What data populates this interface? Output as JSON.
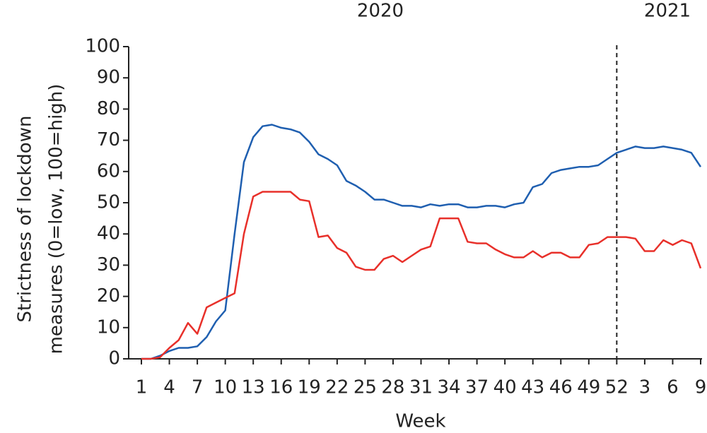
{
  "chart_data": {
    "type": "line",
    "annotations": [
      "2020",
      "2021"
    ],
    "xlabel": "Week",
    "ylabel": [
      "Strictness of lockdown",
      "measures (0=low, 100=high)"
    ],
    "categories": [
      "1",
      null,
      null,
      "4",
      null,
      null,
      "7",
      null,
      null,
      "10",
      null,
      null,
      "13",
      null,
      null,
      "16",
      null,
      null,
      "19",
      null,
      null,
      "22",
      null,
      null,
      "25",
      null,
      null,
      "28",
      null,
      null,
      "31",
      null,
      null,
      "34",
      null,
      null,
      "37",
      null,
      null,
      "40",
      null,
      null,
      "43",
      null,
      null,
      "46",
      null,
      null,
      "49",
      null,
      null,
      "52",
      null,
      null,
      "3",
      null,
      null,
      "6",
      null,
      null,
      "9"
    ],
    "series": [
      {
        "color": "#1f5fb0",
        "values": [
          0,
          0,
          1,
          2.5,
          3.5,
          3.5,
          4,
          7,
          12,
          15.5,
          40,
          63,
          71,
          74.5,
          75,
          74,
          73.5,
          72.5,
          69.5,
          65.5,
          64,
          62,
          57,
          55.5,
          53.5,
          51,
          51,
          50,
          49,
          49,
          48.5,
          49.5,
          49,
          49.5,
          49.5,
          48.5,
          48.5,
          49,
          49,
          48.5,
          49.5,
          50,
          55,
          56,
          59.5,
          60.5,
          61,
          61.5,
          61.5,
          62,
          64,
          66,
          67,
          68,
          67.5,
          67.5,
          68,
          67.5,
          67,
          66,
          61.5
        ]
      },
      {
        "color": "#e8302a",
        "values": [
          0,
          0,
          0.5,
          3.5,
          6,
          11.5,
          8,
          16.5,
          18,
          19.5,
          21,
          40,
          52,
          53.5,
          53.5,
          53.5,
          53.5,
          51,
          50.5,
          39,
          39.5,
          35.5,
          34,
          29.5,
          28.5,
          28.5,
          32,
          33,
          31,
          33,
          35,
          36,
          45,
          45,
          45,
          37.5,
          37,
          37,
          35,
          33.5,
          32.5,
          32.5,
          34.5,
          32.5,
          34,
          34,
          32.5,
          32.5,
          36.5,
          37,
          39,
          39,
          39,
          38.5,
          34.5,
          34.5,
          38,
          36.5,
          38,
          37,
          29
        ]
      }
    ],
    "ylim": [
      0,
      100
    ],
    "yticks": [
      0,
      10,
      20,
      30,
      40,
      50,
      60,
      70,
      80,
      90,
      100
    ]
  }
}
